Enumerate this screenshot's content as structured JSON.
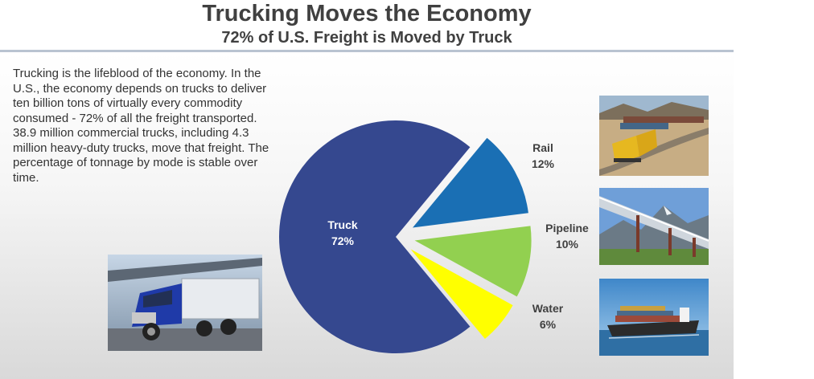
{
  "slide": {
    "title": "Trucking Moves the Economy",
    "subtitle": "72% of U.S. Freight is Moved by Truck",
    "paragraphs": [
      "Trucking is the lifeblood of the economy.  In the U.S., the economy depends on trucks to deliver ten billion tons of virtually every commodity consumed - 72% of all the freight transported.",
      "38.9 million commercial trucks, including 4.3 million heavy-duty trucks, move that freight. The percentage of tonnage by mode is stable over time."
    ]
  },
  "chart_data": {
    "type": "pie",
    "title": "",
    "slices": [
      {
        "name": "Truck",
        "value": 72,
        "label": "72%",
        "color": "#35488f",
        "exploded": false
      },
      {
        "name": "Rail",
        "value": 12,
        "label": "12%",
        "color": "#1a6fb4",
        "exploded": true
      },
      {
        "name": "Pipeline",
        "value": 10,
        "label": "10%",
        "color": "#92d050",
        "exploded": true
      },
      {
        "name": "Water",
        "value": 6,
        "label": "6%",
        "color": "#ffff00",
        "exploded": true
      }
    ],
    "label_colors": {
      "Truck": "#ffffff",
      "Rail": "#404040",
      "Pipeline": "#404040",
      "Water": "#404040"
    },
    "legend": "none"
  },
  "photos": [
    {
      "icon": "semi-truck-photo-icon"
    },
    {
      "icon": "freight-train-photo-icon"
    },
    {
      "icon": "pipeline-photo-icon"
    },
    {
      "icon": "container-ship-photo-icon"
    }
  ]
}
